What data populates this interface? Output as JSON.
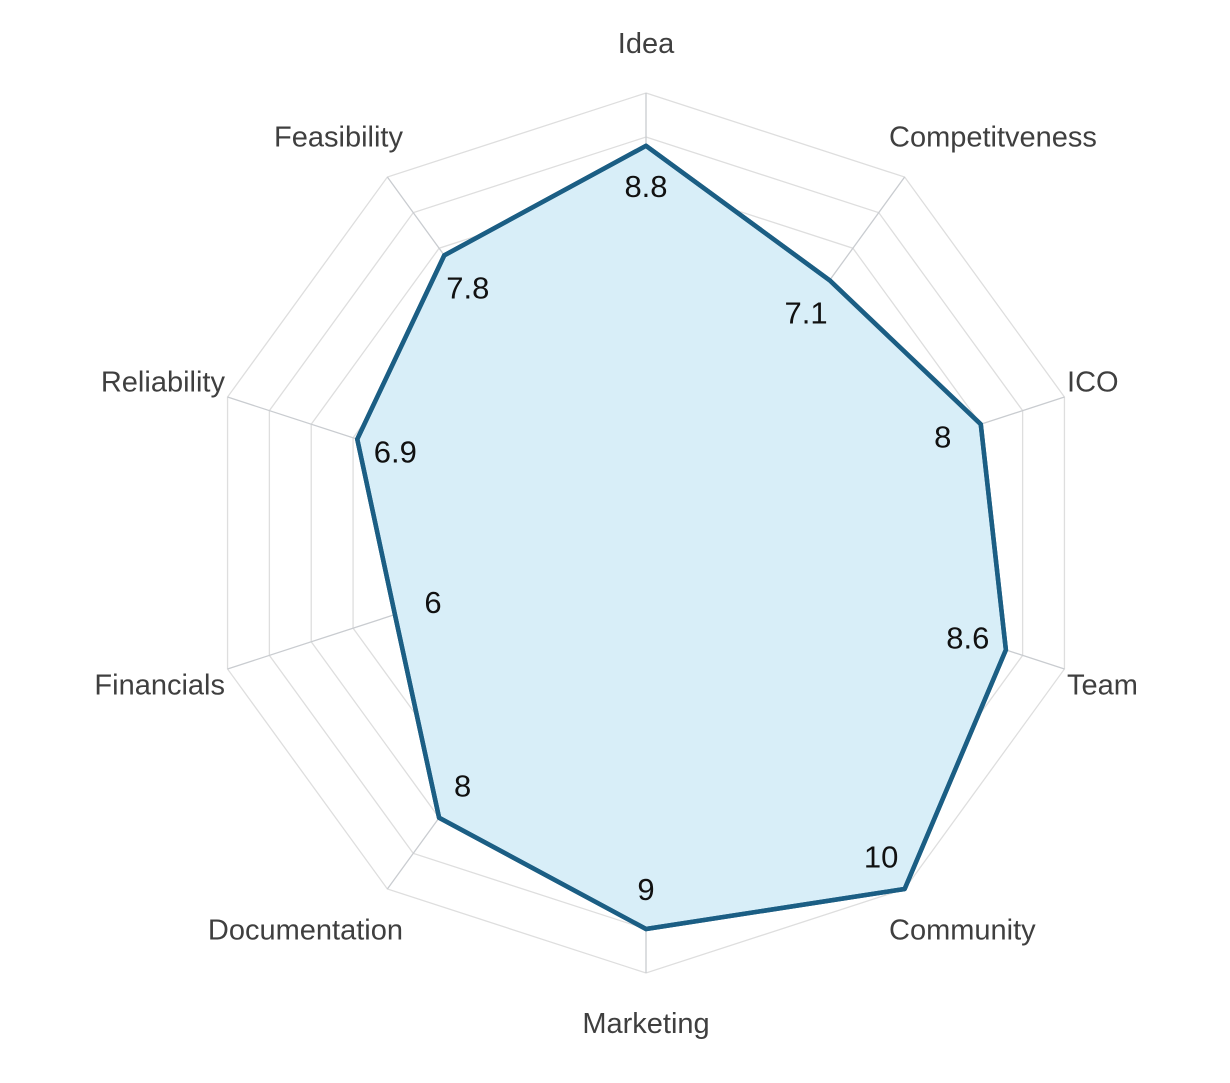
{
  "chart_data": {
    "type": "radar",
    "categories": [
      "Idea",
      "Competitveness",
      "ICO",
      "Team",
      "Community",
      "Marketing",
      "Documentation",
      "Financials",
      "Reliability",
      "Feasibility"
    ],
    "series": [
      {
        "values": [
          8.8,
          7.1,
          8,
          8.6,
          10,
          9,
          8,
          6,
          6.9,
          7.8
        ]
      }
    ],
    "value_labels": [
      "8.8",
      "7.1",
      "8",
      "8.6",
      "10",
      "9",
      "8",
      "6",
      "6.9",
      "7.8"
    ],
    "rlim": [
      0,
      10
    ],
    "grid": true,
    "legend": "none"
  },
  "colors": {
    "line": "#1b5e84",
    "fill": "#d8eef8",
    "grid": "#dedede",
    "spoke": "#c9ccd0",
    "axis_label": "#3f3f3f",
    "value_label": "#111111"
  }
}
